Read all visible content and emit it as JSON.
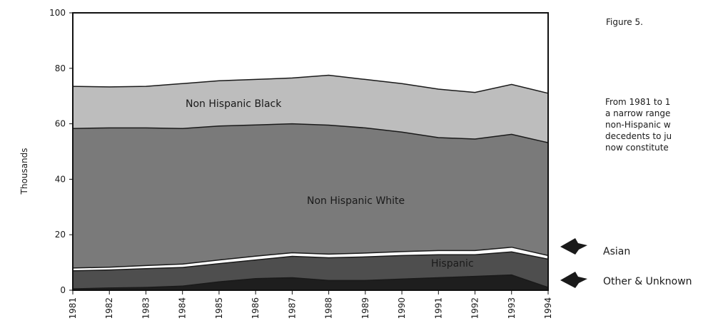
{
  "figure": {
    "title": "Figure 5.",
    "caption": "From 1981 to 1\na narrow range\nnon-Hispanic  w\ndecedents to ju\nnow constitute"
  },
  "chart_data": {
    "type": "area",
    "stacked": true,
    "x": [
      1981,
      1982,
      1983,
      1984,
      1985,
      1986,
      1987,
      1988,
      1989,
      1990,
      1991,
      1992,
      1993,
      1994
    ],
    "ylabel": "Thousands",
    "ylim": [
      0,
      100
    ],
    "yticks": [
      0,
      20,
      40,
      60,
      80,
      100
    ],
    "grid": false,
    "series": [
      {
        "name": "Other & Unknown",
        "color": "#1e1e1e",
        "values": [
          0.5,
          0.8,
          1.0,
          1.5,
          3.0,
          4.2,
          4.5,
          3.5,
          3.5,
          4.0,
          4.5,
          5.0,
          5.5,
          1.0
        ]
      },
      {
        "name": "Hispanic",
        "color": "#4e4e4e",
        "values": [
          6.5,
          6.5,
          6.8,
          6.7,
          6.6,
          6.7,
          7.7,
          8.2,
          8.5,
          8.5,
          8.3,
          7.8,
          8.3,
          10.2
        ]
      },
      {
        "name": "Asian",
        "color": "#ffffff",
        "values": [
          1.0,
          1.0,
          1.1,
          1.2,
          1.3,
          1.4,
          1.3,
          1.3,
          1.4,
          1.4,
          1.5,
          1.5,
          1.7,
          1.3
        ]
      },
      {
        "name": "Non Hispanic White",
        "color": "#7a7a7a",
        "values": [
          50.3,
          50.2,
          49.6,
          48.9,
          48.3,
          47.3,
          46.5,
          46.5,
          45.1,
          43.1,
          40.7,
          40.2,
          40.7,
          40.7
        ]
      },
      {
        "name": "Non Hispanic Black",
        "color": "#bdbdbd",
        "values": [
          15.2,
          14.8,
          15.0,
          16.2,
          16.3,
          16.4,
          16.5,
          18.0,
          17.5,
          17.5,
          17.5,
          16.8,
          18.0,
          17.8
        ]
      }
    ],
    "region_labels": [
      "Non Hispanic Black",
      "Non Hispanic White",
      "Hispanic"
    ],
    "annotations": [
      "Asian",
      "Other & Unknown"
    ]
  }
}
